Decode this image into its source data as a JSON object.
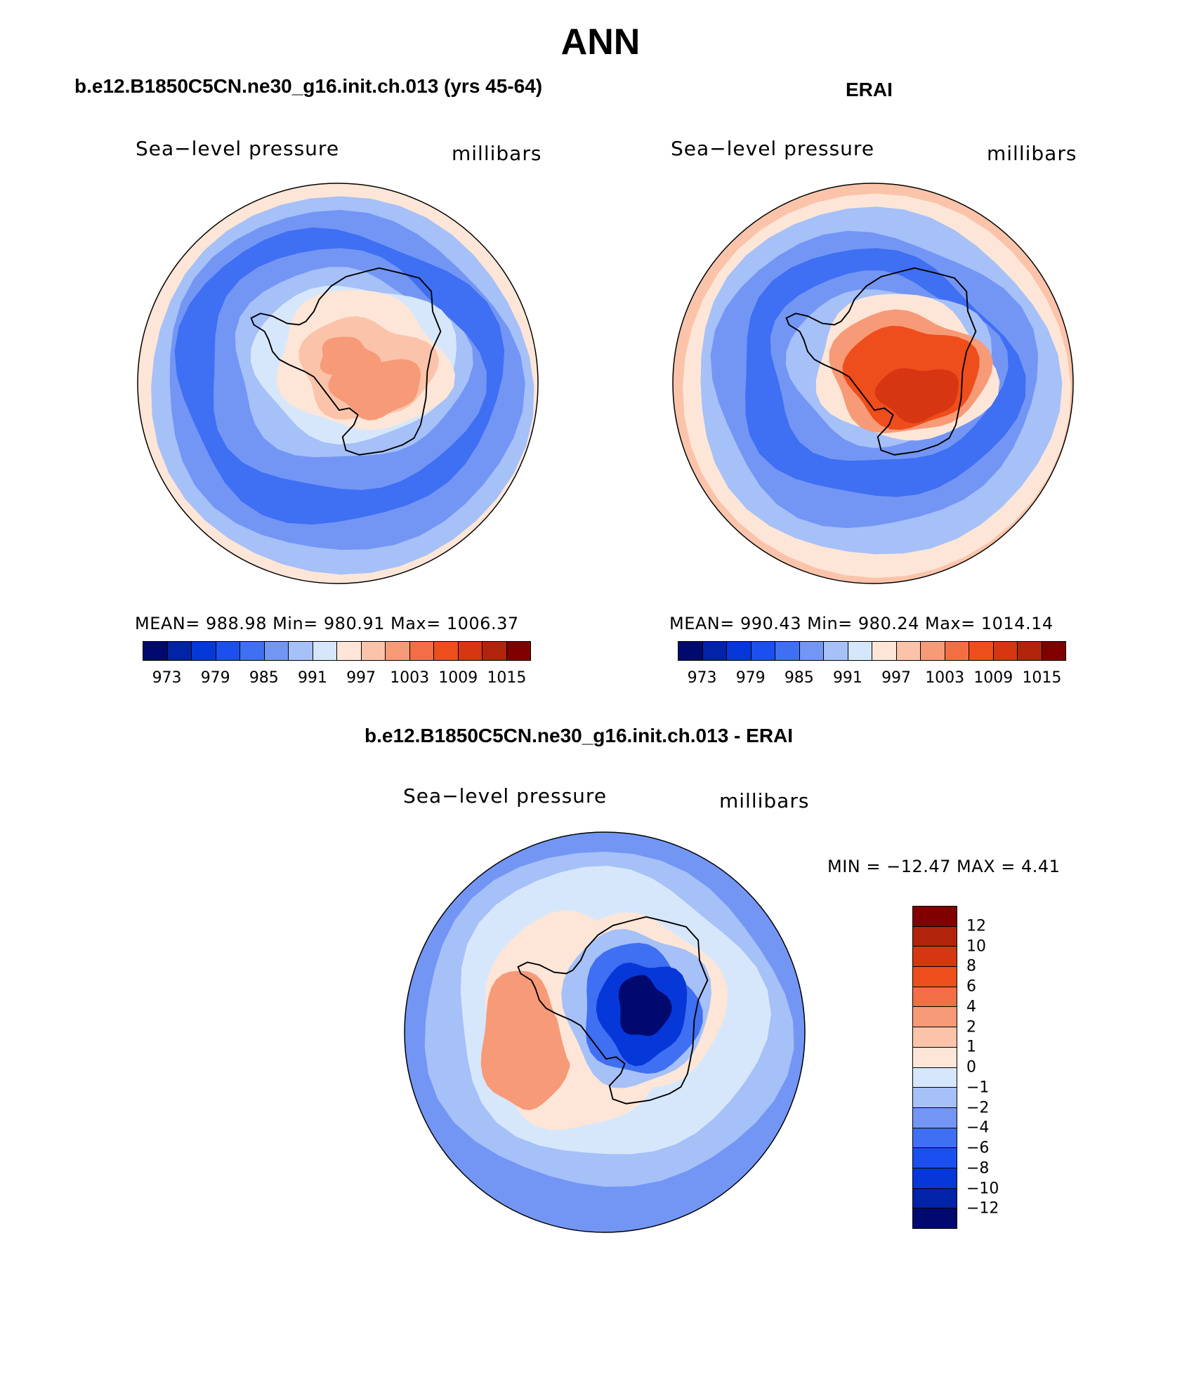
{
  "title": "ANN",
  "panels": [
    {
      "title": "b.e12.B1850C5CN.ne30_g16.init.ch.013 (yrs 45-64)",
      "var_label": "Sea−level pressure",
      "units": "millibars",
      "stats_text": "MEAN=  988.98    Min=  980.91    Max=  1006.37"
    },
    {
      "title": "ERAI",
      "var_label": "Sea−level pressure",
      "units": "millibars",
      "stats_text": "MEAN=  990.43    Min=  980.24    Max=  1014.14"
    },
    {
      "title": "b.e12.B1850C5CN.ne30_g16.init.ch.013 - ERAI",
      "var_label": "Sea−level pressure",
      "units": "millibars",
      "stats_text": "MIN  =  −12.47  MAX  =     4.41"
    }
  ],
  "colors": {
    "abs_scale": [
      "#000a6e",
      "#0023a8",
      "#0637d9",
      "#1b4ff0",
      "#3f6ff2",
      "#7396f5",
      "#a6c0f8",
      "#d6e7fb",
      "#fde6d7",
      "#fbc4aa",
      "#f79a78",
      "#f36e45",
      "#ee4e1c",
      "#d63612",
      "#b2230b",
      "#800000"
    ],
    "diff_scale": [
      "#800000",
      "#b2230b",
      "#d63612",
      "#ee4e1c",
      "#f36e45",
      "#f79a78",
      "#fbc4aa",
      "#fde6d7",
      "#d6e7fb",
      "#a6c0f8",
      "#7396f5",
      "#3f6ff2",
      "#1b4ff0",
      "#0637d9",
      "#0023a8",
      "#000a6e"
    ]
  },
  "abs_tick_labels": [
    "973",
    "979",
    "985",
    "991",
    "997",
    "1003",
    "1009",
    "1015"
  ],
  "diff_tick_labels": [
    "12",
    "10",
    "8",
    "6",
    "4",
    "2",
    "1",
    "0",
    "−1",
    "−2",
    "−4",
    "−6",
    "−8",
    "−10",
    "−12"
  ]
}
